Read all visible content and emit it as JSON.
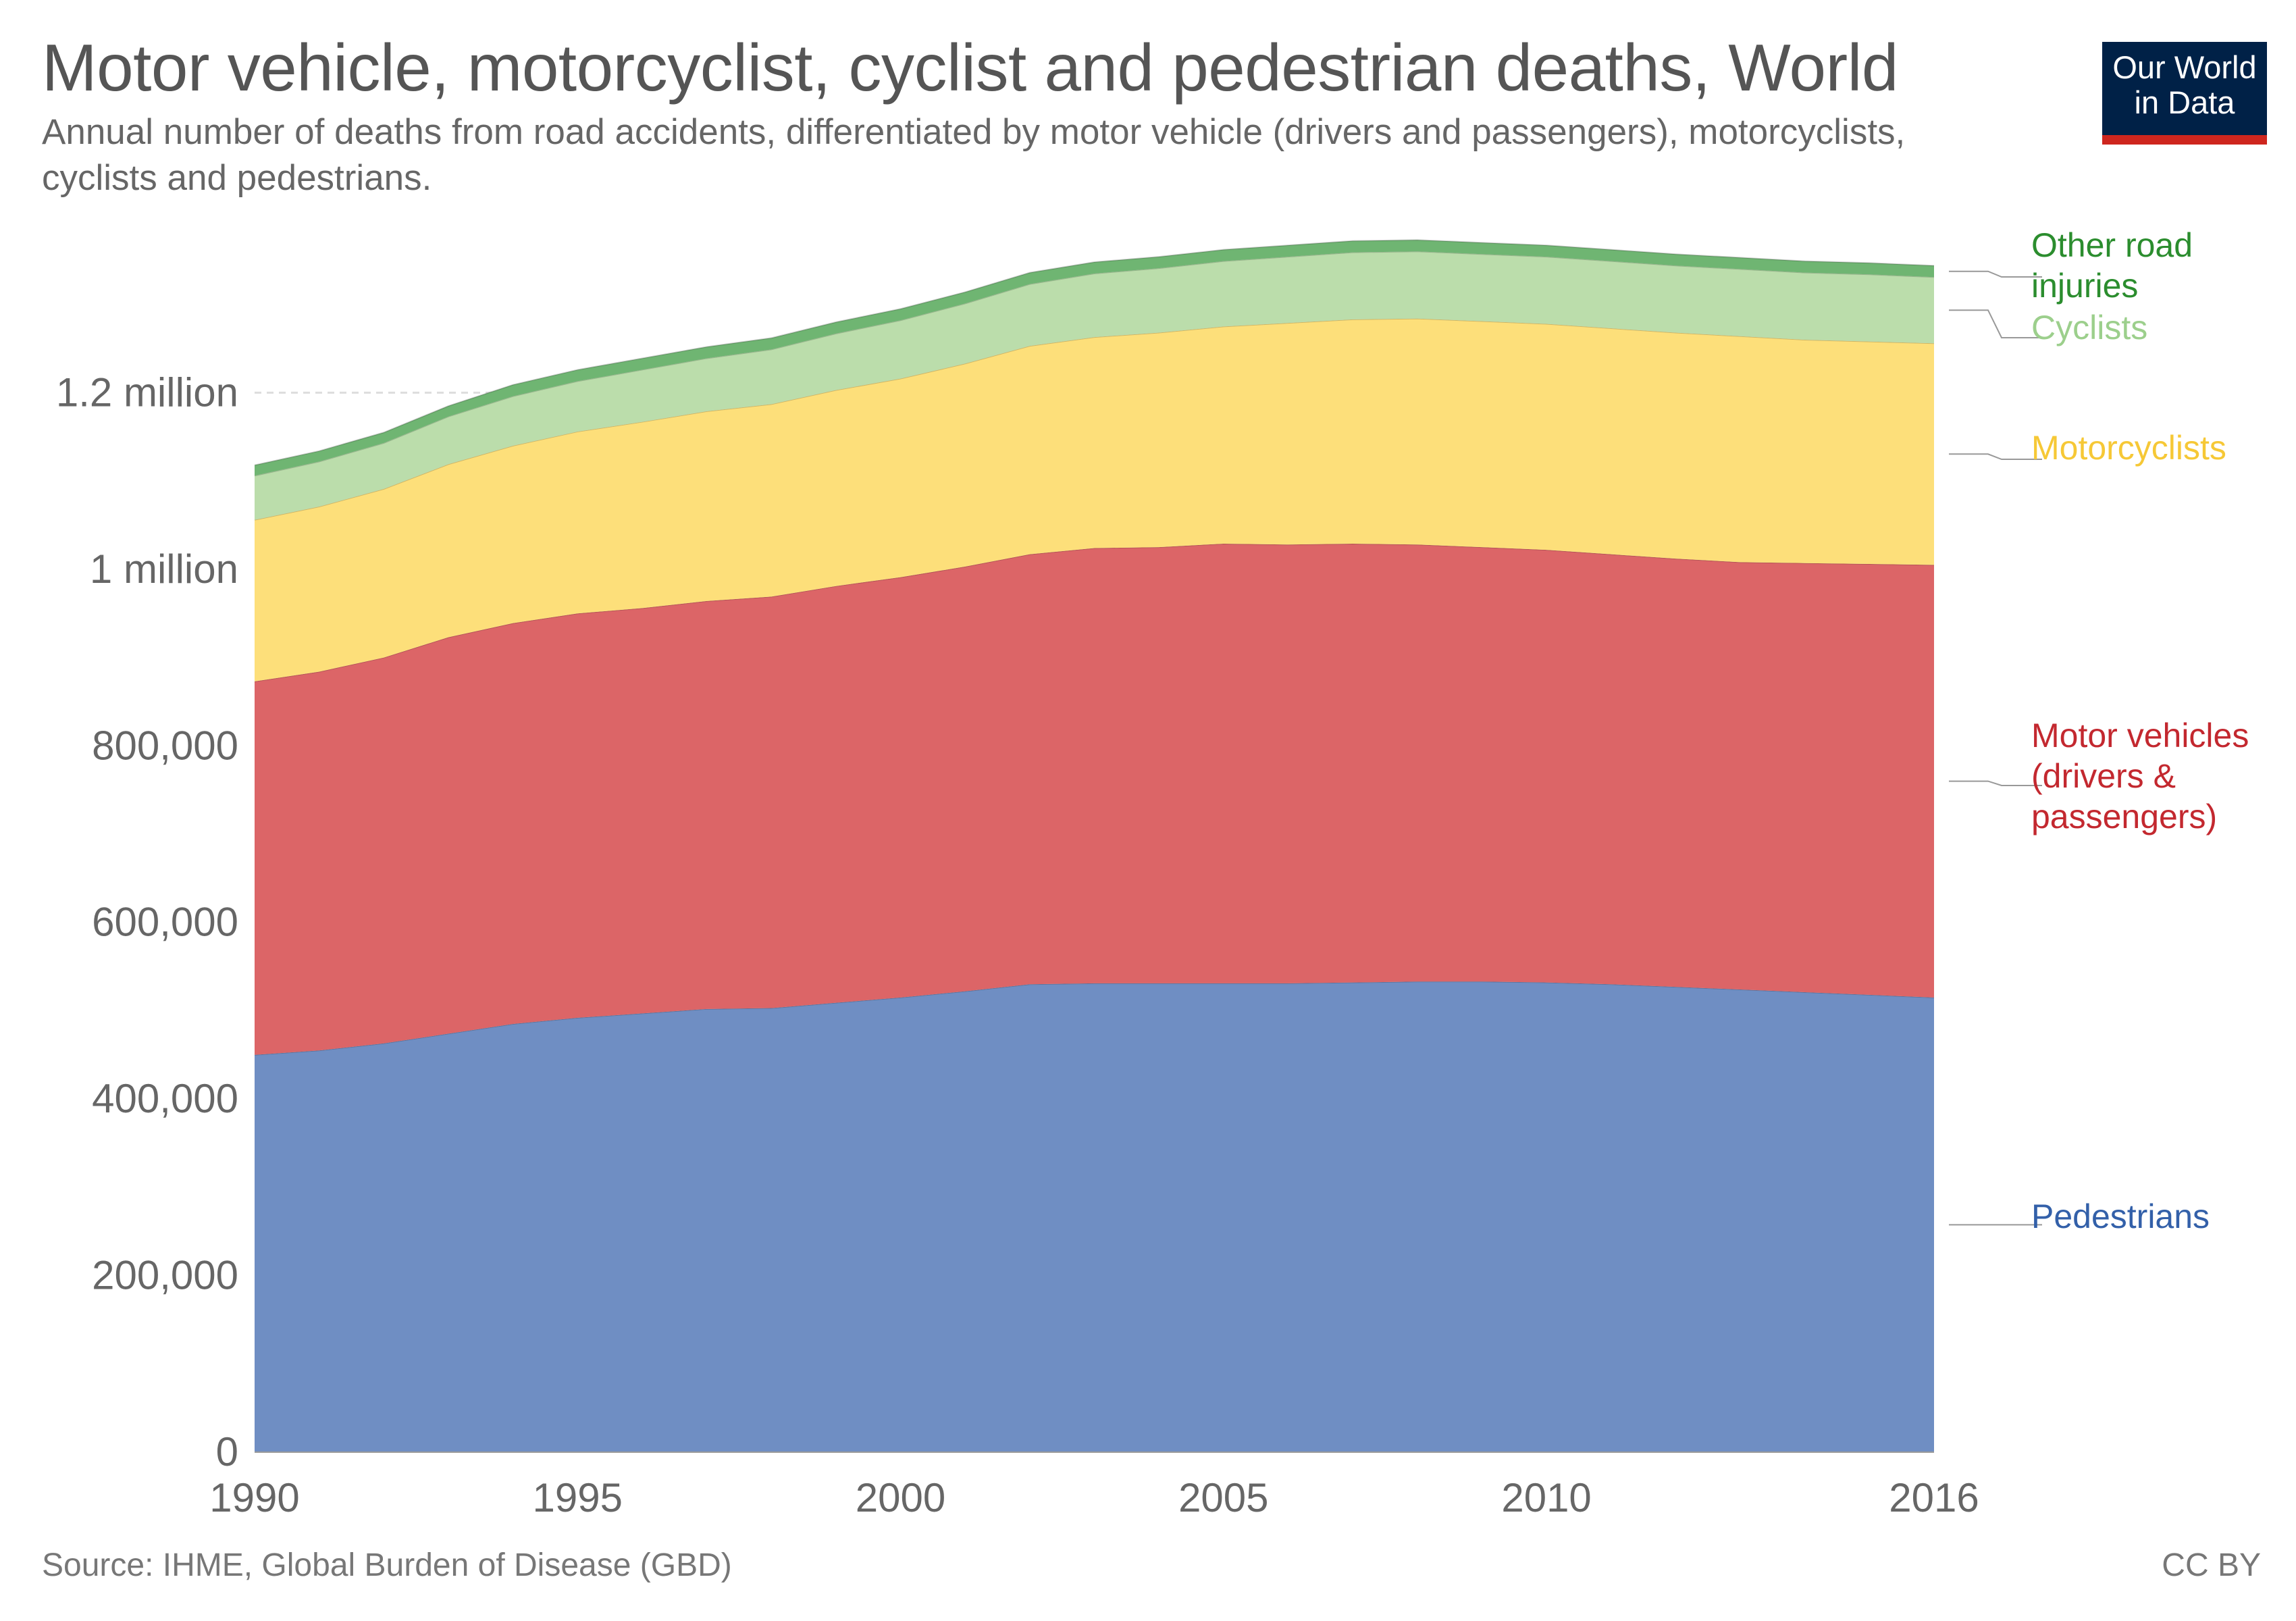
{
  "title": "Motor vehicle, motorcyclist, cyclist and pedestrian deaths, World",
  "subtitle": "Annual number of deaths from road accidents, differentiated by motor vehicle (drivers and passengers), motorcyclists, cyclists and pedestrians.",
  "logo": {
    "line1": "Our World",
    "line2": "in Data",
    "bg": "#002147",
    "accent": "#ce261e"
  },
  "source": "Source: IHME, Global Burden of Disease (GBD)",
  "license": "CC BY",
  "chart_data": {
    "type": "area",
    "stacked": true,
    "x": [
      1990,
      1991,
      1992,
      1993,
      1994,
      1995,
      1996,
      1997,
      1998,
      1999,
      2000,
      2001,
      2002,
      2003,
      2004,
      2005,
      2006,
      2007,
      2008,
      2009,
      2010,
      2011,
      2012,
      2013,
      2014,
      2015,
      2016
    ],
    "xticks": [
      "1990",
      "1995",
      "2000",
      "2005",
      "2010",
      "2016"
    ],
    "xtick_values": [
      1990,
      1995,
      2000,
      2005,
      2010,
      2016
    ],
    "yticks": [
      "0",
      "200,000",
      "400,000",
      "600,000",
      "800,000",
      "1 million",
      "1.2 million"
    ],
    "ytick_values": [
      0,
      200000,
      400000,
      600000,
      800000,
      1000000,
      1200000
    ],
    "ylim": [
      0,
      1400000
    ],
    "grid": "horizontal dashed",
    "legend": "right, inline labels",
    "series": [
      {
        "name": "Pedestrians",
        "label_lines": [
          "Pedestrians"
        ],
        "color": "#6f8ec3",
        "label_color": "#3360a9",
        "values": [
          450000,
          455000,
          463000,
          474000,
          485000,
          492000,
          497000,
          502000,
          503000,
          509000,
          515000,
          522000,
          530000,
          531000,
          531000,
          531000,
          531000,
          532000,
          533000,
          533000,
          532000,
          530000,
          527000,
          524000,
          521000,
          518000,
          515000
        ]
      },
      {
        "name": "Motor vehicles (drivers & passengers)",
        "label_lines": [
          "Motor vehicles",
          "(drivers &",
          "passengers)"
        ],
        "color": "#dc6567",
        "label_color": "#c3282f",
        "values": [
          423000,
          429000,
          437000,
          449000,
          454000,
          458000,
          459000,
          462000,
          466000,
          472000,
          476000,
          481000,
          487000,
          493000,
          494000,
          498000,
          497000,
          497000,
          495000,
          492000,
          490000,
          487000,
          485000,
          484000,
          486000,
          488000,
          490000
        ]
      },
      {
        "name": "Motorcyclists",
        "label_lines": [
          "Motorcyclists"
        ],
        "color": "#fddf7a",
        "label_color": "#f6c836",
        "values": [
          183000,
          187000,
          191000,
          196000,
          201000,
          206000,
          211000,
          215000,
          218000,
          222000,
          225000,
          230000,
          236000,
          239000,
          243000,
          246000,
          251000,
          254000,
          256000,
          256000,
          256000,
          256000,
          256000,
          256000,
          253000,
          252000,
          251000
        ]
      },
      {
        "name": "Cyclists",
        "label_lines": [
          "Cyclists"
        ],
        "color": "#bbddab",
        "label_color": "#9ccf8c",
        "values": [
          50000,
          51000,
          52000,
          54000,
          56000,
          57000,
          59000,
          60000,
          62000,
          64000,
          66000,
          68000,
          70000,
          72000,
          73000,
          74000,
          75000,
          76000,
          76000,
          76000,
          76000,
          76000,
          76000,
          76000,
          76000,
          76000,
          75000
        ]
      },
      {
        "name": "Other road injuries",
        "label_lines": [
          "Other road",
          "injuries"
        ],
        "color": "#6fb572",
        "label_color": "#2b8d2e",
        "values": [
          12000,
          12000,
          12000,
          12000,
          13000,
          13000,
          13000,
          13000,
          13000,
          13000,
          13000,
          13000,
          13000,
          13000,
          13000,
          13000,
          13000,
          13000,
          13000,
          13000,
          13000,
          13000,
          13000,
          13000,
          13000,
          13000,
          13000
        ]
      }
    ]
  }
}
